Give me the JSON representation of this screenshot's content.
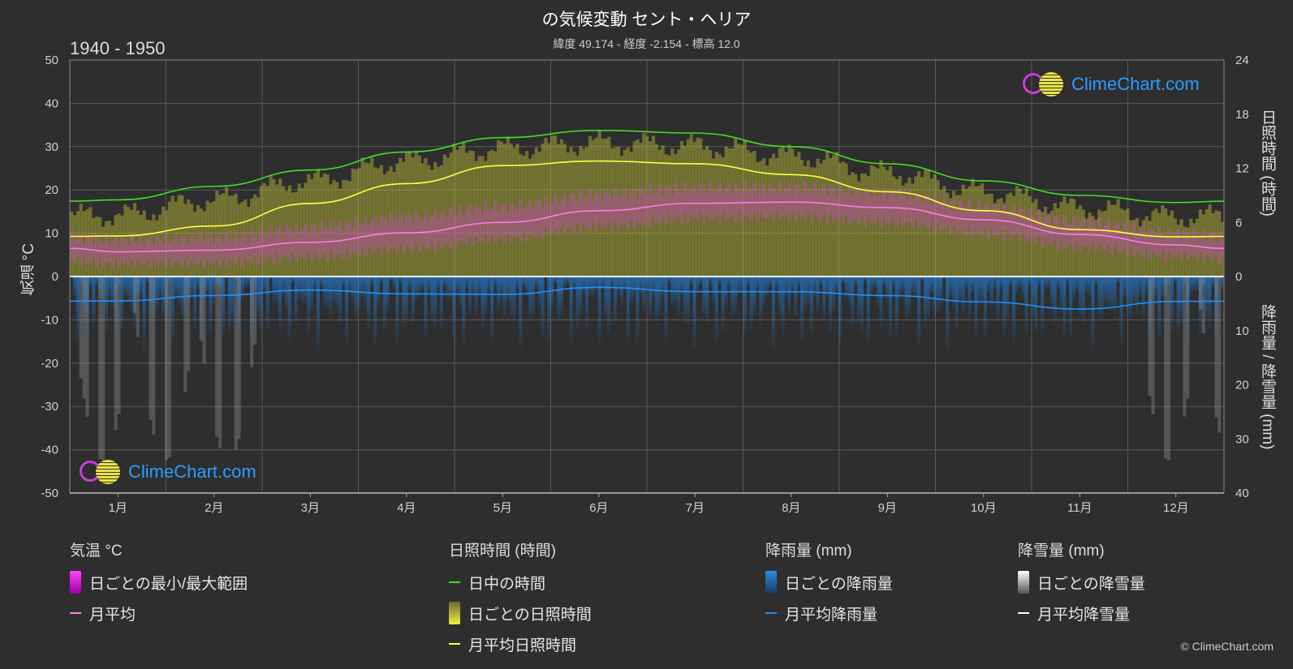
{
  "header": {
    "title": "の気候変動 セント・ヘリア",
    "subtitle": "緯度 49.174 - 経度 -2.154 - 標高 12.0",
    "period": "1940 - 1950"
  },
  "axes": {
    "left_title": "気温 °C",
    "right_top_title": "日照時間 (時間)",
    "right_bottom_title": "降雨量 / 降雪量 (mm)"
  },
  "logo": {
    "text": "ClimeChart.com"
  },
  "copyright": "© ClimeChart.com",
  "legend": {
    "temperature": {
      "title": "気温 °C",
      "range_label": "日ごとの最小/最大範囲",
      "mean_label": "月平均"
    },
    "sunshine": {
      "title": "日照時間 (時間)",
      "daylight_label": "日中の時間",
      "daily_label": "日ごとの日照時間",
      "mean_label": "月平均日照時間"
    },
    "rain": {
      "title": "降雨量 (mm)",
      "daily_label": "日ごとの降雨量",
      "mean_label": "月平均降雨量"
    },
    "snow": {
      "title": "降雪量 (mm)",
      "daily_label": "日ごとの降雪量",
      "mean_label": "月平均降雪量"
    }
  },
  "colors": {
    "background": "#2e2e2e",
    "temp_range": "#e040e0",
    "temp_mean": "#ff7ae8",
    "daylight": "#44dd22",
    "sunshine": "#d8d83a",
    "sunshine_mean": "#ffff44",
    "rain": "#2a8fe0",
    "rain_mean": "#1e90ff",
    "snow": "#ffffff",
    "grid": "#5a5a5a"
  },
  "chart_data": {
    "type": "line",
    "categories": [
      "1月",
      "2月",
      "3月",
      "4月",
      "5月",
      "6月",
      "7月",
      "8月",
      "9月",
      "10月",
      "11月",
      "12月"
    ],
    "left_axis": {
      "ylim": [
        -50,
        50
      ],
      "ticks": [
        50,
        40,
        30,
        20,
        10,
        0,
        -10,
        -20,
        -30,
        -40,
        -50
      ]
    },
    "right_axis_sunshine": {
      "ylim": [
        0,
        24
      ],
      "ticks": [
        24,
        18,
        12,
        6,
        0
      ]
    },
    "right_axis_precip": {
      "ylim": [
        0,
        40
      ],
      "ticks": [
        0,
        10,
        20,
        30,
        40
      ]
    },
    "series": [
      {
        "name": "日中の時間",
        "axis": "sunshine_hours",
        "values": [
          8.5,
          10.0,
          11.8,
          13.8,
          15.4,
          16.2,
          15.9,
          14.4,
          12.5,
          10.6,
          9.0,
          8.2
        ]
      },
      {
        "name": "月平均日照時間",
        "axis": "sunshine_hours",
        "values": [
          4.5,
          5.6,
          8.1,
          10.3,
          12.3,
          12.8,
          12.5,
          11.3,
          9.4,
          7.3,
          5.2,
          4.4
        ]
      },
      {
        "name": "日ごとの日照時間",
        "axis": "sunshine_hours",
        "values": [
          6.8,
          8.5,
          10.6,
          12.8,
          14.2,
          14.8,
          14.5,
          13.4,
          11.5,
          9.4,
          7.6,
          6.6
        ]
      },
      {
        "name": "月平均",
        "axis": "temperature_c",
        "values": [
          5.7,
          6.1,
          7.9,
          10.1,
          12.5,
          15.2,
          16.9,
          17.2,
          15.9,
          13.1,
          9.7,
          7.3
        ]
      },
      {
        "name": "日ごとの最小/最大範囲 (min)",
        "axis": "temperature_c",
        "values": [
          3.0,
          3.2,
          4.5,
          6.4,
          8.8,
          11.5,
          13.4,
          13.8,
          12.5,
          10.0,
          6.8,
          4.6
        ]
      },
      {
        "name": "日ごとの最小/最大範囲 (max)",
        "axis": "temperature_c",
        "values": [
          8.4,
          9.0,
          11.3,
          13.8,
          16.2,
          19.0,
          20.5,
          20.6,
          19.3,
          16.2,
          12.6,
          10.0
        ]
      },
      {
        "name": "月平均降雨量",
        "axis": "precip_mm",
        "values": [
          4.5,
          3.5,
          2.5,
          3.2,
          3.3,
          2.0,
          2.8,
          2.8,
          3.5,
          4.7,
          6.0,
          4.6
        ]
      },
      {
        "name": "月平均降雪量",
        "axis": "precip_mm",
        "values": [
          0,
          0,
          0,
          0,
          0,
          0,
          0,
          0,
          0,
          0,
          0,
          0
        ]
      }
    ]
  }
}
